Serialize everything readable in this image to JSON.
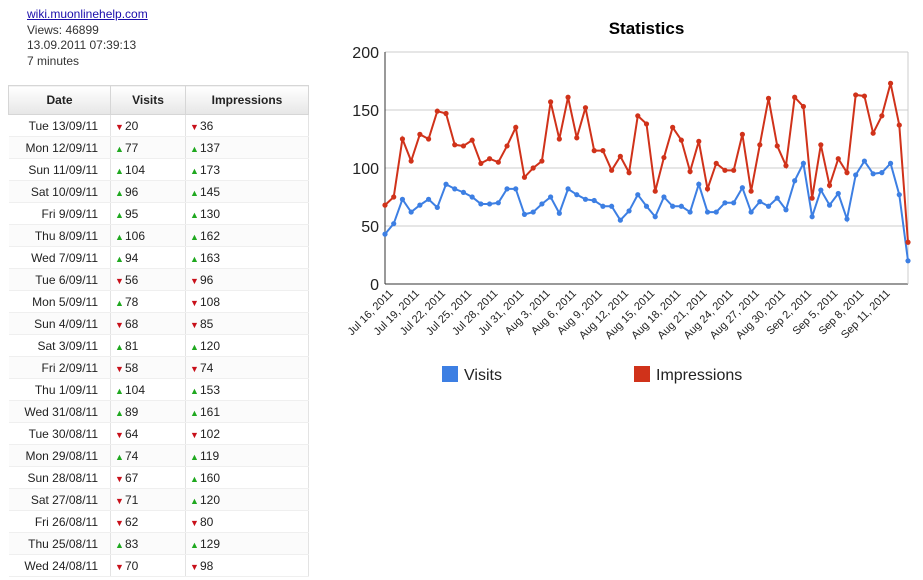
{
  "header": {
    "site_link": "wiki.muonlinehelp.com",
    "views": "Views: 46899",
    "datetime": "13.09.2011 07:39:13",
    "duration": "7 minutes"
  },
  "table": {
    "columns": [
      "Date",
      "Visits",
      "Impressions"
    ],
    "rows": [
      {
        "date": "Tue 13/09/11",
        "visits": "20",
        "visits_trend": "down",
        "impressions": "36",
        "impressions_trend": "down"
      },
      {
        "date": "Mon 12/09/11",
        "visits": "77",
        "visits_trend": "up",
        "impressions": "137",
        "impressions_trend": "up"
      },
      {
        "date": "Sun 11/09/11",
        "visits": "104",
        "visits_trend": "up",
        "impressions": "173",
        "impressions_trend": "up"
      },
      {
        "date": "Sat 10/09/11",
        "visits": "96",
        "visits_trend": "up",
        "impressions": "145",
        "impressions_trend": "up"
      },
      {
        "date": "Fri 9/09/11",
        "visits": "95",
        "visits_trend": "up",
        "impressions": "130",
        "impressions_trend": "up"
      },
      {
        "date": "Thu 8/09/11",
        "visits": "106",
        "visits_trend": "up",
        "impressions": "162",
        "impressions_trend": "up"
      },
      {
        "date": "Wed 7/09/11",
        "visits": "94",
        "visits_trend": "up",
        "impressions": "163",
        "impressions_trend": "up"
      },
      {
        "date": "Tue 6/09/11",
        "visits": "56",
        "visits_trend": "down",
        "impressions": "96",
        "impressions_trend": "down"
      },
      {
        "date": "Mon 5/09/11",
        "visits": "78",
        "visits_trend": "up",
        "impressions": "108",
        "impressions_trend": "down"
      },
      {
        "date": "Sun 4/09/11",
        "visits": "68",
        "visits_trend": "down",
        "impressions": "85",
        "impressions_trend": "down"
      },
      {
        "date": "Sat 3/09/11",
        "visits": "81",
        "visits_trend": "up",
        "impressions": "120",
        "impressions_trend": "up"
      },
      {
        "date": "Fri 2/09/11",
        "visits": "58",
        "visits_trend": "down",
        "impressions": "74",
        "impressions_trend": "down"
      },
      {
        "date": "Thu 1/09/11",
        "visits": "104",
        "visits_trend": "up",
        "impressions": "153",
        "impressions_trend": "up"
      },
      {
        "date": "Wed 31/08/11",
        "visits": "89",
        "visits_trend": "up",
        "impressions": "161",
        "impressions_trend": "up"
      },
      {
        "date": "Tue 30/08/11",
        "visits": "64",
        "visits_trend": "down",
        "impressions": "102",
        "impressions_trend": "down"
      },
      {
        "date": "Mon 29/08/11",
        "visits": "74",
        "visits_trend": "up",
        "impressions": "119",
        "impressions_trend": "up"
      },
      {
        "date": "Sun 28/08/11",
        "visits": "67",
        "visits_trend": "down",
        "impressions": "160",
        "impressions_trend": "up"
      },
      {
        "date": "Sat 27/08/11",
        "visits": "71",
        "visits_trend": "down",
        "impressions": "120",
        "impressions_trend": "up"
      },
      {
        "date": "Fri 26/08/11",
        "visits": "62",
        "visits_trend": "down",
        "impressions": "80",
        "impressions_trend": "down"
      },
      {
        "date": "Thu 25/08/11",
        "visits": "83",
        "visits_trend": "up",
        "impressions": "129",
        "impressions_trend": "up"
      },
      {
        "date": "Wed 24/08/11",
        "visits": "70",
        "visits_trend": "down",
        "impressions": "98",
        "impressions_trend": "down"
      }
    ]
  },
  "chart_data": {
    "type": "line",
    "title": "Statistics",
    "ylim": [
      0,
      200
    ],
    "yticks": [
      0,
      50,
      100,
      150,
      200
    ],
    "x": [
      "2011-07-15",
      "2011-07-16",
      "2011-07-17",
      "2011-07-18",
      "2011-07-19",
      "2011-07-20",
      "2011-07-21",
      "2011-07-22",
      "2011-07-23",
      "2011-07-24",
      "2011-07-25",
      "2011-07-26",
      "2011-07-27",
      "2011-07-28",
      "2011-07-29",
      "2011-07-30",
      "2011-07-31",
      "2011-08-01",
      "2011-08-02",
      "2011-08-03",
      "2011-08-04",
      "2011-08-05",
      "2011-08-06",
      "2011-08-07",
      "2011-08-08",
      "2011-08-09",
      "2011-08-10",
      "2011-08-11",
      "2011-08-12",
      "2011-08-13",
      "2011-08-14",
      "2011-08-15",
      "2011-08-16",
      "2011-08-17",
      "2011-08-18",
      "2011-08-19",
      "2011-08-20",
      "2011-08-21",
      "2011-08-22",
      "2011-08-23",
      "2011-08-24",
      "2011-08-25",
      "2011-08-26",
      "2011-08-27",
      "2011-08-28",
      "2011-08-29",
      "2011-08-30",
      "2011-08-31",
      "2011-09-01",
      "2011-09-02",
      "2011-09-03",
      "2011-09-04",
      "2011-09-05",
      "2011-09-06",
      "2011-09-07",
      "2011-09-08",
      "2011-09-09",
      "2011-09-10",
      "2011-09-11",
      "2011-09-12",
      "2011-09-13"
    ],
    "xtick_labels": [
      "Jul 16, 2011",
      "Jul 19, 2011",
      "Jul 22, 2011",
      "Jul 25, 2011",
      "Jul 28, 2011",
      "Jul 31, 2011",
      "Aug 3, 2011",
      "Aug 6, 2011",
      "Aug 9, 2011",
      "Aug 12, 2011",
      "Aug 15, 2011",
      "Aug 18, 2011",
      "Aug 21, 2011",
      "Aug 24, 2011",
      "Aug 27, 2011",
      "Aug 30, 2011",
      "Sep 2, 2011",
      "Sep 5, 2011",
      "Sep 8, 2011",
      "Sep 11, 2011"
    ],
    "series": [
      {
        "name": "Visits",
        "color": "#3d7fe3",
        "values": [
          43,
          52,
          73,
          62,
          68,
          73,
          66,
          86,
          82,
          79,
          75,
          69,
          69,
          70,
          82,
          82,
          60,
          62,
          69,
          75,
          61,
          82,
          77,
          73,
          72,
          67,
          67,
          55,
          63,
          77,
          67,
          58,
          75,
          67,
          67,
          62,
          86,
          62,
          62,
          70,
          70,
          83,
          62,
          71,
          67,
          74,
          64,
          89,
          104,
          58,
          81,
          68,
          78,
          56,
          94,
          106,
          95,
          96,
          104,
          77,
          20
        ]
      },
      {
        "name": "Impressions",
        "color": "#d0321a",
        "values": [
          68,
          75,
          125,
          106,
          129,
          125,
          149,
          147,
          120,
          119,
          124,
          104,
          108,
          105,
          119,
          135,
          92,
          100,
          106,
          157,
          125,
          161,
          126,
          152,
          115,
          115,
          98,
          110,
          96,
          145,
          138,
          80,
          109,
          135,
          124,
          97,
          123,
          82,
          104,
          98,
          98,
          129,
          80,
          120,
          160,
          119,
          102,
          161,
          153,
          74,
          120,
          85,
          108,
          96,
          163,
          162,
          130,
          145,
          173,
          137,
          36
        ]
      }
    ],
    "legend_position": "bottom",
    "grid": "horizontal"
  }
}
